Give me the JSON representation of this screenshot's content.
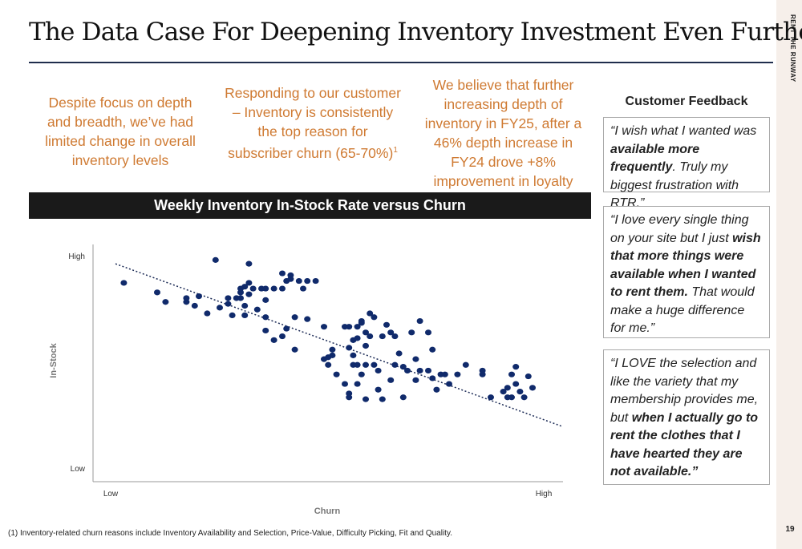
{
  "slide": {
    "title": "The Data Case For Deepening Inventory Investment Even Further",
    "brand": "RENT THE RUNWAY",
    "page_number": "19",
    "footnote": "(1) Inventory-related churn reasons include Inventory Availability and Selection, Price-Value, Difficulty Picking, Fit and Quality."
  },
  "points": {
    "p1": "Despite focus on depth and breadth, we’ve had limited change in overall inventory levels",
    "p2": "Responding to our customer – Inventory is consistently the top reason for subscriber churn (65-70%)",
    "p2_sup": "1",
    "p3": "We believe that further increasing depth of inventory in FY25, after a 46% depth increase in FY24 drove +8% improvement in loyalty"
  },
  "banner": {
    "text": "Weekly Inventory In-Stock Rate versus Churn"
  },
  "feedback": {
    "heading": "Customer Feedback",
    "q1": [
      {
        "t": " “I wish what I wanted was ",
        "b": false
      },
      {
        "t": "available more frequently",
        "b": true
      },
      {
        "t": ". Truly my biggest frustration with RTR.”",
        "b": false
      }
    ],
    "q2": [
      {
        "t": "“I love every single thing on your site but I just ",
        "b": false
      },
      {
        "t": "wish that more things were available when I wanted to rent them.",
        "b": true
      },
      {
        "t": " That would make a huge difference for me.”",
        "b": false
      }
    ],
    "q3": [
      {
        "t": "“I LOVE the selection and like the variety that my membership provides me, but ",
        "b": false
      },
      {
        "t": "when I actually go to rent the clothes that I have hearted they are not available.”",
        "b": true
      }
    ]
  },
  "chart_data": {
    "type": "scatter",
    "title": "Weekly Inventory In-Stock Rate versus Churn",
    "xlabel": "Churn",
    "ylabel": "In-Stock",
    "x_ticks": [
      "Low",
      "High"
    ],
    "y_ticks": [
      "Low",
      "High"
    ],
    "xlim": [
      0,
      100
    ],
    "ylim": [
      0,
      100
    ],
    "trendline": {
      "style": "dotted",
      "from": [
        0,
        97
      ],
      "to": [
        100,
        14
      ]
    },
    "colors": {
      "points": "#102a6b",
      "axis": "#9a9a9a",
      "trend": "#1b2a55"
    },
    "points": [
      [
        2,
        87
      ],
      [
        10,
        82
      ],
      [
        12,
        77
      ],
      [
        17,
        79
      ],
      [
        17,
        77
      ],
      [
        19,
        75
      ],
      [
        20,
        80
      ],
      [
        22,
        71
      ],
      [
        25,
        74
      ],
      [
        27,
        76
      ],
      [
        27,
        79
      ],
      [
        28,
        70
      ],
      [
        29,
        79
      ],
      [
        30,
        79
      ],
      [
        31,
        75
      ],
      [
        32,
        81
      ],
      [
        30,
        82
      ],
      [
        31,
        85
      ],
      [
        32,
        87
      ],
      [
        31,
        70
      ],
      [
        30,
        84
      ],
      [
        33,
        84
      ],
      [
        34,
        73
      ],
      [
        35,
        84
      ],
      [
        36,
        69
      ],
      [
        36,
        78
      ],
      [
        36,
        84
      ],
      [
        38,
        84
      ],
      [
        40,
        84
      ],
      [
        40,
        92
      ],
      [
        41,
        88
      ],
      [
        42,
        89
      ],
      [
        42,
        91
      ],
      [
        43,
        69
      ],
      [
        44,
        88
      ],
      [
        45,
        84
      ],
      [
        46,
        68
      ],
      [
        46,
        88
      ],
      [
        48,
        88
      ],
      [
        36,
        62
      ],
      [
        38,
        57
      ],
      [
        43,
        52
      ],
      [
        41,
        63
      ],
      [
        40,
        59
      ],
      [
        24,
        99
      ],
      [
        32,
        97
      ],
      [
        50,
        64
      ],
      [
        50,
        47
      ],
      [
        51,
        48
      ],
      [
        52,
        49
      ],
      [
        51,
        44
      ],
      [
        52,
        52
      ],
      [
        53,
        39
      ],
      [
        55,
        64
      ],
      [
        56,
        64
      ],
      [
        56,
        53
      ],
      [
        55,
        34
      ],
      [
        56,
        29
      ],
      [
        57,
        44
      ],
      [
        57,
        57
      ],
      [
        58,
        44
      ],
      [
        58,
        58
      ],
      [
        58,
        64
      ],
      [
        59,
        66
      ],
      [
        59,
        67
      ],
      [
        60,
        61
      ],
      [
        60,
        44
      ],
      [
        60,
        54
      ],
      [
        61,
        71
      ],
      [
        61,
        59
      ],
      [
        59,
        39
      ],
      [
        58,
        34
      ],
      [
        56,
        27
      ],
      [
        60,
        26
      ],
      [
        62,
        69
      ],
      [
        63,
        41
      ],
      [
        63,
        31
      ],
      [
        64,
        26
      ],
      [
        64,
        59
      ],
      [
        65,
        65
      ],
      [
        66,
        61
      ],
      [
        66,
        36
      ],
      [
        67,
        59
      ],
      [
        67,
        44
      ],
      [
        68,
        50
      ],
      [
        69,
        27
      ],
      [
        69,
        43
      ],
      [
        70,
        41
      ],
      [
        71,
        61
      ],
      [
        72,
        47
      ],
      [
        73,
        67
      ],
      [
        73,
        41
      ],
      [
        75,
        61
      ],
      [
        75,
        41
      ],
      [
        76,
        52
      ],
      [
        76,
        37
      ],
      [
        77,
        31
      ],
      [
        78,
        39
      ],
      [
        79,
        39
      ],
      [
        80,
        34
      ],
      [
        84,
        44
      ],
      [
        88,
        39
      ],
      [
        94,
        32
      ],
      [
        95,
        39
      ],
      [
        96,
        34
      ],
      [
        97,
        30
      ],
      [
        99,
        38
      ],
      [
        100,
        32
      ],
      [
        95,
        27
      ],
      [
        93,
        30
      ],
      [
        98,
        27
      ],
      [
        88,
        41
      ],
      [
        90,
        27
      ],
      [
        94,
        27
      ],
      [
        96,
        43
      ],
      [
        72,
        36
      ],
      [
        57,
        49
      ],
      [
        62,
        44
      ],
      [
        82,
        39
      ]
    ]
  }
}
